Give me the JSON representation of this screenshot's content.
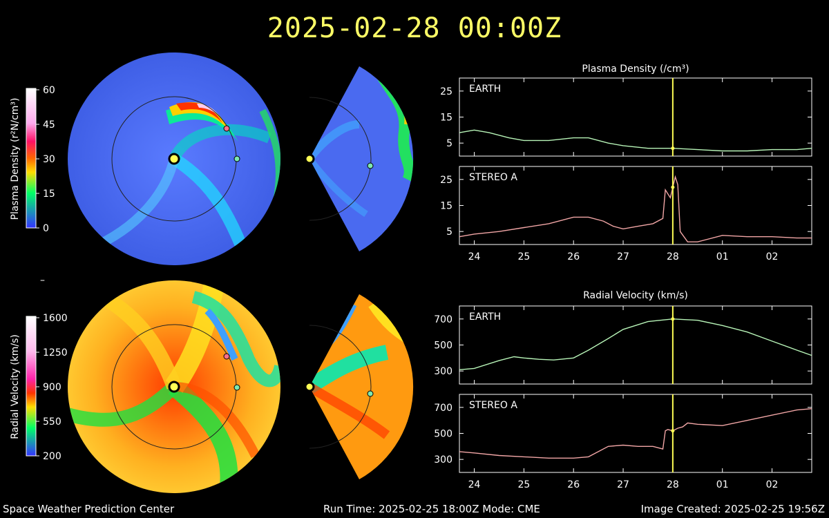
{
  "header": {
    "title": "2025-02-28  00:00Z"
  },
  "density_colorbar": {
    "label": "Plasma Density (r²N/cm³)",
    "ticks": [
      "60",
      "45",
      "30",
      "15",
      "0"
    ]
  },
  "velocity_colorbar": {
    "label": "Radial Velocity (km/s)",
    "ticks": [
      "1600",
      "1250",
      "900",
      "550",
      "200"
    ]
  },
  "colors": {
    "title": "#ffff66",
    "earth_line": "#b8f5b8",
    "stereo_line": "#f2a6a6",
    "time_marker": "#ffff55",
    "earth_marker": "#7ee8b0",
    "stereo_marker": "#ff6f8a"
  },
  "density_panel": {
    "title": "Plasma Density (/cm³)",
    "earth_label": "EARTH",
    "stereo_label": "STEREO A",
    "y_ticks": [
      "25",
      "15",
      "5"
    ]
  },
  "velocity_panel": {
    "title": "Radial Velocity (km/s)",
    "earth_label": "EARTH",
    "stereo_label": "STEREO A",
    "y_ticks": [
      "700",
      "500",
      "300"
    ]
  },
  "x_ticks": [
    "24",
    "25",
    "26",
    "27",
    "28",
    "01",
    "02"
  ],
  "chart_data": [
    {
      "type": "line",
      "title": "Plasma Density (/cm³)",
      "series": [
        {
          "name": "EARTH",
          "x": [
            23.7,
            24.0,
            24.3,
            24.7,
            25.0,
            25.5,
            26.0,
            26.3,
            26.7,
            27.0,
            27.5,
            28.0,
            28.5,
            29.0,
            29.5,
            30.0,
            30.5,
            30.8
          ],
          "values": [
            9,
            10,
            9,
            7,
            6,
            6,
            7,
            7,
            5,
            4,
            3,
            3,
            2.5,
            2,
            2,
            2.5,
            2.5,
            3
          ]
        },
        {
          "name": "STEREO A",
          "x": [
            23.7,
            24.0,
            24.5,
            25.0,
            25.5,
            26.0,
            26.3,
            26.6,
            26.8,
            27.0,
            27.3,
            27.6,
            27.8,
            27.85,
            27.95,
            28.0,
            28.05,
            28.1,
            28.15,
            28.3,
            28.5,
            29.0,
            29.5,
            30.0,
            30.5,
            30.8
          ],
          "values": [
            3,
            4,
            5,
            6.5,
            8,
            10.5,
            10.5,
            9,
            7,
            6,
            7,
            8,
            10,
            21,
            18,
            22,
            26,
            23,
            5,
            1,
            1,
            3.5,
            3,
            3,
            2.5,
            2.5
          ]
        }
      ],
      "ylim": [
        0,
        30
      ]
    },
    {
      "type": "line",
      "title": "Radial Velocity (km/s)",
      "series": [
        {
          "name": "EARTH",
          "x": [
            23.7,
            24.0,
            24.5,
            24.8,
            25.0,
            25.3,
            25.6,
            26.0,
            26.3,
            26.7,
            27.0,
            27.5,
            28.0,
            28.5,
            29.0,
            29.5,
            30.0,
            30.5,
            30.8
          ],
          "values": [
            310,
            320,
            380,
            410,
            400,
            390,
            385,
            400,
            460,
            550,
            620,
            680,
            700,
            690,
            650,
            600,
            530,
            460,
            420
          ]
        },
        {
          "name": "STEREO A",
          "x": [
            23.7,
            24.0,
            24.5,
            25.0,
            25.5,
            26.0,
            26.3,
            26.7,
            27.0,
            27.3,
            27.6,
            27.8,
            27.85,
            27.9,
            28.0,
            28.1,
            28.2,
            28.3,
            28.5,
            29.0,
            29.5,
            30.0,
            30.5,
            30.8
          ],
          "values": [
            360,
            350,
            330,
            320,
            310,
            310,
            320,
            400,
            410,
            400,
            400,
            380,
            520,
            530,
            520,
            540,
            550,
            580,
            570,
            560,
            600,
            640,
            680,
            690
          ]
        }
      ],
      "ylim": [
        200,
        800
      ]
    }
  ],
  "footer": {
    "left": "Space Weather Prediction Center",
    "center": "Run Time: 2025-02-25 18:00Z  Mode: CME",
    "right": "Image Created: 2025-02-25 19:56Z"
  }
}
